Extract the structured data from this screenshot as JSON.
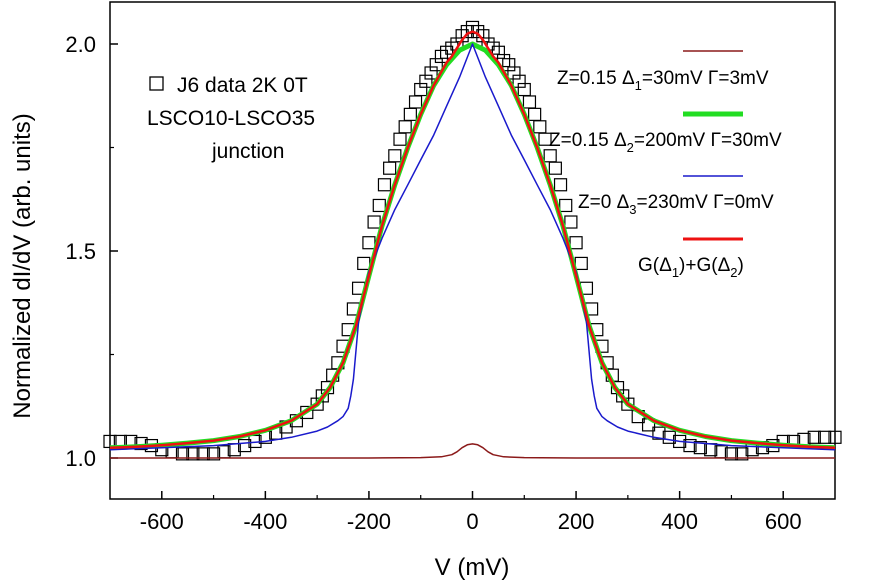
{
  "chart_data": {
    "type": "line",
    "xlabel": "V (mV)",
    "ylabel": "Normalized dI/dV (arb. units)",
    "xlim": [
      -700,
      700
    ],
    "ylim": [
      0.9,
      2.1
    ],
    "xticks": [
      -600,
      -400,
      -200,
      0,
      200,
      400,
      600
    ],
    "xtick_labels": [
      "-600",
      "-400",
      "-200",
      "0",
      "200",
      "400",
      "600"
    ],
    "yticks": [
      1.0,
      1.5,
      2.0
    ],
    "ytick_labels": [
      "1.0",
      "1.5",
      "2.0"
    ],
    "grid": false,
    "data_label": {
      "line1": "J6 data  2K  0T",
      "line2": "LSCO10-LSCO35",
      "line3": "junction"
    },
    "legend": {
      "position": "top-right",
      "entries": [
        {
          "prefix": "Z=0.15  ",
          "delta": "Δ",
          "sub": "1",
          "rest": "=30mV     Γ=3mV",
          "color": "#8b1a1a",
          "width": 1.5
        },
        {
          "prefix": "Z=0.15  ",
          "delta": "Δ",
          "sub": "2",
          "rest": "=200mV  Γ=30mV",
          "color": "#22dd22",
          "width": 5
        },
        {
          "prefix": "Z=0  ",
          "delta": "Δ",
          "sub": "3",
          "rest": "=230mV  Γ=0mV",
          "color": "#1a1acc",
          "width": 1.5
        },
        {
          "text_parts": [
            "G(",
            "Δ",
            "1",
            ")+G(",
            "Δ",
            "2",
            ")"
          ],
          "color": "#ee1111",
          "width": 3
        }
      ]
    },
    "series": [
      {
        "name": "J6 data 2K 0T",
        "marker": "open-square",
        "x": [
          -700,
          -680,
          -660,
          -640,
          -620,
          -600,
          -580,
          -560,
          -540,
          -520,
          -500,
          -480,
          -460,
          -440,
          -420,
          -400,
          -380,
          -360,
          -340,
          -320,
          -300,
          -290,
          -280,
          -270,
          -260,
          -250,
          -240,
          -230,
          -220,
          -210,
          -200,
          -190,
          -180,
          -170,
          -160,
          -150,
          -140,
          -130,
          -120,
          -110,
          -100,
          -90,
          -80,
          -70,
          -60,
          -50,
          -40,
          -30,
          -20,
          -10,
          0,
          10,
          20,
          30,
          40,
          50,
          60,
          70,
          80,
          90,
          100,
          110,
          120,
          130,
          140,
          150,
          160,
          170,
          180,
          190,
          200,
          210,
          220,
          230,
          240,
          250,
          260,
          270,
          280,
          290,
          300,
          320,
          340,
          360,
          380,
          400,
          420,
          440,
          460,
          480,
          500,
          520,
          540,
          560,
          580,
          600,
          620,
          640,
          660,
          680,
          700
        ],
        "y": [
          1.04,
          1.04,
          1.04,
          1.035,
          1.03,
          1.02,
          1.015,
          1.01,
          1.01,
          1.01,
          1.01,
          1.015,
          1.02,
          1.03,
          1.04,
          1.05,
          1.06,
          1.075,
          1.09,
          1.11,
          1.13,
          1.15,
          1.17,
          1.2,
          1.23,
          1.27,
          1.31,
          1.36,
          1.41,
          1.47,
          1.52,
          1.57,
          1.61,
          1.66,
          1.7,
          1.73,
          1.77,
          1.8,
          1.83,
          1.86,
          1.89,
          1.91,
          1.93,
          1.95,
          1.97,
          1.98,
          1.99,
          2.0,
          2.02,
          2.03,
          2.04,
          2.03,
          2.02,
          2.0,
          1.99,
          1.98,
          1.96,
          1.95,
          1.93,
          1.91,
          1.89,
          1.86,
          1.83,
          1.8,
          1.77,
          1.73,
          1.7,
          1.66,
          1.61,
          1.57,
          1.52,
          1.47,
          1.41,
          1.36,
          1.31,
          1.27,
          1.23,
          1.2,
          1.17,
          1.15,
          1.13,
          1.1,
          1.08,
          1.06,
          1.05,
          1.04,
          1.03,
          1.025,
          1.02,
          1.015,
          1.01,
          1.01,
          1.02,
          1.025,
          1.03,
          1.04,
          1.04,
          1.045,
          1.05,
          1.05,
          1.05
        ]
      },
      {
        "name": "Z=0.15 Δ1=30mV Γ=3mV",
        "x": [
          -700,
          -200,
          -100,
          -60,
          -40,
          -30,
          -20,
          -10,
          0,
          10,
          20,
          30,
          40,
          60,
          100,
          200,
          700
        ],
        "y": [
          1.0,
          1.0,
          1.001,
          1.003,
          1.008,
          1.015,
          1.025,
          1.032,
          1.034,
          1.032,
          1.025,
          1.015,
          1.008,
          1.003,
          1.001,
          1.0,
          1.0
        ]
      },
      {
        "name": "Z=0.15 Δ2=200mV Γ=30mV",
        "x": [
          -700,
          -650,
          -600,
          -550,
          -500,
          -450,
          -400,
          -350,
          -300,
          -275,
          -250,
          -225,
          -200,
          -175,
          -150,
          -125,
          -100,
          -75,
          -50,
          -25,
          0,
          25,
          50,
          75,
          100,
          125,
          150,
          175,
          200,
          225,
          250,
          275,
          300,
          350,
          400,
          450,
          500,
          550,
          600,
          650,
          700
        ],
        "y": [
          1.025,
          1.027,
          1.031,
          1.036,
          1.042,
          1.052,
          1.067,
          1.09,
          1.13,
          1.17,
          1.23,
          1.32,
          1.44,
          1.56,
          1.66,
          1.75,
          1.83,
          1.9,
          1.95,
          1.985,
          2.0,
          1.985,
          1.95,
          1.9,
          1.83,
          1.75,
          1.66,
          1.56,
          1.44,
          1.32,
          1.23,
          1.17,
          1.13,
          1.09,
          1.067,
          1.052,
          1.042,
          1.036,
          1.031,
          1.027,
          1.025
        ]
      },
      {
        "name": "Z=0 Δ3=230mV Γ=0mV",
        "x": [
          -700,
          -600,
          -500,
          -400,
          -350,
          -300,
          -280,
          -260,
          -250,
          -240,
          -235,
          -230,
          -220,
          -200,
          -175,
          -150,
          -125,
          -100,
          -75,
          -50,
          -25,
          0,
          25,
          50,
          75,
          100,
          125,
          150,
          175,
          200,
          220,
          230,
          235,
          240,
          250,
          260,
          280,
          300,
          350,
          400,
          500,
          600,
          700
        ],
        "y": [
          1.02,
          1.025,
          1.03,
          1.04,
          1.05,
          1.065,
          1.075,
          1.09,
          1.1,
          1.12,
          1.15,
          1.19,
          1.33,
          1.45,
          1.53,
          1.6,
          1.66,
          1.72,
          1.78,
          1.85,
          1.92,
          2.0,
          1.92,
          1.85,
          1.78,
          1.72,
          1.66,
          1.6,
          1.53,
          1.45,
          1.33,
          1.19,
          1.15,
          1.12,
          1.1,
          1.09,
          1.075,
          1.065,
          1.05,
          1.04,
          1.03,
          1.025,
          1.02
        ]
      },
      {
        "name": "G(Δ1)+G(Δ2)",
        "x": [
          -700,
          -650,
          -600,
          -550,
          -500,
          -450,
          -400,
          -350,
          -300,
          -275,
          -250,
          -225,
          -200,
          -175,
          -150,
          -125,
          -100,
          -75,
          -50,
          -40,
          -30,
          -20,
          -10,
          0,
          10,
          20,
          30,
          40,
          50,
          75,
          100,
          125,
          150,
          175,
          200,
          225,
          250,
          275,
          300,
          350,
          400,
          450,
          500,
          550,
          600,
          650,
          700
        ],
        "y": [
          1.025,
          1.027,
          1.031,
          1.036,
          1.042,
          1.052,
          1.067,
          1.09,
          1.13,
          1.17,
          1.23,
          1.32,
          1.44,
          1.56,
          1.66,
          1.75,
          1.83,
          1.9,
          1.955,
          1.97,
          1.99,
          2.01,
          2.025,
          2.03,
          2.025,
          2.01,
          1.99,
          1.97,
          1.955,
          1.9,
          1.83,
          1.75,
          1.66,
          1.56,
          1.44,
          1.32,
          1.23,
          1.17,
          1.13,
          1.09,
          1.067,
          1.052,
          1.042,
          1.036,
          1.031,
          1.027,
          1.025
        ]
      }
    ]
  }
}
